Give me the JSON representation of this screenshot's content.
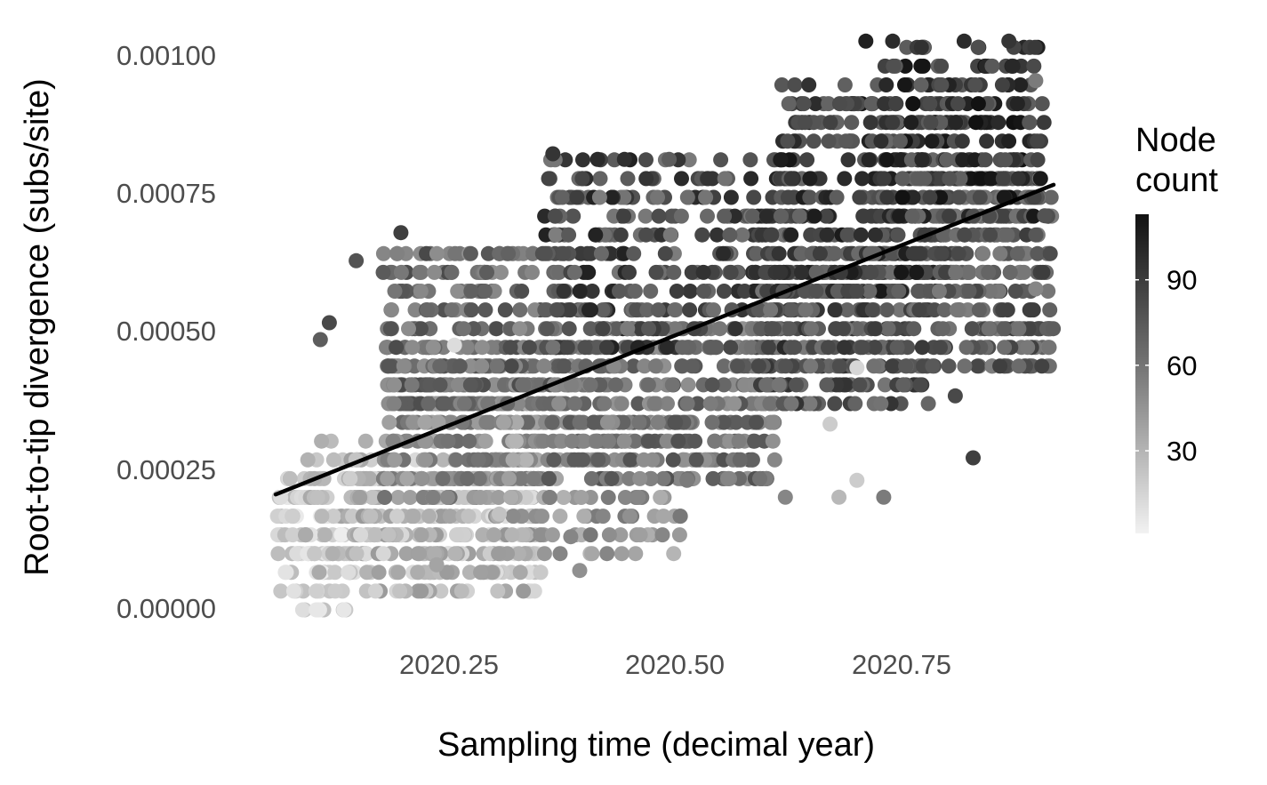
{
  "chart_data": {
    "type": "scatter",
    "title": "",
    "xlabel": "Sampling time (decimal year)",
    "ylabel": "Root-to-tip divergence (subs/site)",
    "xlim": [
      2020.03,
      2020.91
    ],
    "ylim": [
      -3e-05,
      0.00102
    ],
    "x_ticks": [
      2020.25,
      2020.5,
      2020.75
    ],
    "x_tick_labels": [
      "2020.25",
      "2020.50",
      "2020.75"
    ],
    "y_ticks": [
      0.0,
      0.00025,
      0.0005,
      0.00075,
      0.001
    ],
    "y_tick_labels": [
      "0.00000",
      "0.00025",
      "0.00050",
      "0.00075",
      "0.00100"
    ],
    "grid": false,
    "legend": {
      "title_lines": [
        "Node",
        "count"
      ],
      "placement": "right",
      "min": 1,
      "max": 113,
      "ticks": [
        30,
        60,
        90
      ],
      "tick_labels": [
        "30",
        "60",
        "90"
      ],
      "color_low": "#f2f2f2",
      "color_high": "#111111"
    },
    "regression_line": {
      "x": [
        2020.04,
        2020.91
      ],
      "y": [
        0.000205,
        0.000755
      ],
      "color": "#000000"
    },
    "point_clusters": [
      {
        "x": [
          2020.04,
          2020.12
        ],
        "y": [
          -1e-05,
          0.00023
        ],
        "n": 110,
        "count": [
          3,
          30
        ]
      },
      {
        "x": [
          2020.07,
          2020.16
        ],
        "y": [
          8e-05,
          0.0003
        ],
        "n": 50,
        "count": [
          20,
          45
        ]
      },
      {
        "x": [
          2020.12,
          2020.34
        ],
        "y": [
          3e-05,
          0.00027
        ],
        "n": 280,
        "count": [
          10,
          45
        ]
      },
      {
        "x": [
          2020.16,
          2020.34
        ],
        "y": [
          0.0002,
          0.00044
        ],
        "n": 260,
        "count": [
          35,
          70
        ]
      },
      {
        "x": [
          2020.16,
          2020.36
        ],
        "y": [
          0.00035,
          0.00065
        ],
        "n": 240,
        "count": [
          50,
          85
        ]
      },
      {
        "x": [
          2020.28,
          2020.5
        ],
        "y": [
          0.0001,
          0.00034
        ],
        "n": 140,
        "count": [
          30,
          62
        ]
      },
      {
        "x": [
          2020.34,
          2020.6
        ],
        "y": [
          0.00022,
          0.0005
        ],
        "n": 340,
        "count": [
          48,
          82
        ]
      },
      {
        "x": [
          2020.34,
          2020.62
        ],
        "y": [
          0.00045,
          0.0008
        ],
        "n": 340,
        "count": [
          58,
          105
        ]
      },
      {
        "x": [
          2020.58,
          2020.78
        ],
        "y": [
          0.00036,
          0.00065
        ],
        "n": 300,
        "count": [
          60,
          98
        ]
      },
      {
        "x": [
          2020.6,
          2020.8
        ],
        "y": [
          0.00055,
          0.00092
        ],
        "n": 320,
        "count": [
          68,
          110
        ]
      },
      {
        "x": [
          2020.78,
          2020.91
        ],
        "y": [
          0.00042,
          0.00078
        ],
        "n": 240,
        "count": [
          58,
          92
        ]
      },
      {
        "x": [
          2020.72,
          2020.9
        ],
        "y": [
          0.0007,
          0.001
        ],
        "n": 200,
        "count": [
          72,
          113
        ]
      }
    ],
    "highlight_points": [
      {
        "x": 2020.09,
        "y": 0.00048,
        "count": 75
      },
      {
        "x": 2020.1,
        "y": 0.00051,
        "count": 85
      },
      {
        "x": 2020.13,
        "y": 0.00062,
        "count": 80
      },
      {
        "x": 2020.18,
        "y": 0.00067,
        "count": 90
      },
      {
        "x": 2020.35,
        "y": 0.00081,
        "count": 95
      },
      {
        "x": 2020.4,
        "y": 0.0008,
        "count": 100
      },
      {
        "x": 2020.43,
        "y": 0.0008,
        "count": 98
      },
      {
        "x": 2020.48,
        "y": 0.0008,
        "count": 75
      },
      {
        "x": 2020.7,
        "y": 0.00101,
        "count": 105
      },
      {
        "x": 2020.73,
        "y": 0.00101,
        "count": 100
      },
      {
        "x": 2020.81,
        "y": 0.00101,
        "count": 100
      },
      {
        "x": 2020.86,
        "y": 0.00101,
        "count": 95
      },
      {
        "x": 2020.89,
        "y": 0.00094,
        "count": 60
      },
      {
        "x": 2020.9,
        "y": 0.0007,
        "count": 80
      },
      {
        "x": 2020.89,
        "y": 0.00057,
        "count": 55
      },
      {
        "x": 2020.82,
        "y": 0.00027,
        "count": 90
      },
      {
        "x": 2020.8,
        "y": 0.00038,
        "count": 85
      },
      {
        "x": 2020.69,
        "y": 0.00023,
        "count": 20
      },
      {
        "x": 2020.67,
        "y": 0.0002,
        "count": 30
      },
      {
        "x": 2020.72,
        "y": 0.0002,
        "count": 60
      },
      {
        "x": 2020.69,
        "y": 0.00043,
        "count": 15
      },
      {
        "x": 2020.66,
        "y": 0.00033,
        "count": 20
      },
      {
        "x": 2020.61,
        "y": 0.0002,
        "count": 55
      },
      {
        "x": 2020.5,
        "y": 0.00023,
        "count": 60
      },
      {
        "x": 2020.38,
        "y": 7e-05,
        "count": 50
      },
      {
        "x": 2020.37,
        "y": 0.00013,
        "count": 55
      },
      {
        "x": 2020.29,
        "y": 0.00017,
        "count": 25
      },
      {
        "x": 2020.22,
        "y": 8e-05,
        "count": 40
      },
      {
        "x": 2020.24,
        "y": 0.00047,
        "count": 12
      }
    ]
  }
}
